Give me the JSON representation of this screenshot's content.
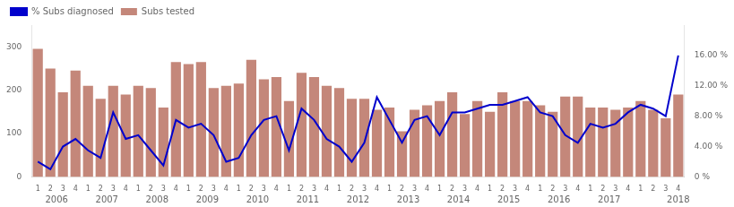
{
  "chart_data": {
    "type": "bar",
    "categories": [
      "1",
      "2",
      "3",
      "4",
      "1",
      "2",
      "3",
      "4",
      "1",
      "2",
      "3",
      "4",
      "1",
      "2",
      "3",
      "4",
      "1",
      "2",
      "3",
      "4",
      "1",
      "2",
      "3",
      "4",
      "1",
      "2",
      "3",
      "4",
      "1",
      "2",
      "3",
      "4",
      "1",
      "2",
      "3",
      "4",
      "1",
      "2",
      "3",
      "4",
      "1",
      "2",
      "3",
      "4",
      "1",
      "2",
      "3",
      "4",
      "1",
      "2",
      "3",
      "4"
    ],
    "series": [
      {
        "name": "Subs tested",
        "type": "bar",
        "color": "#C4877A",
        "values": [
          295,
          250,
          195,
          245,
          210,
          180,
          210,
          190,
          210,
          205,
          160,
          265,
          260,
          265,
          205,
          210,
          215,
          270,
          225,
          230,
          175,
          240,
          230,
          210,
          205,
          180,
          180,
          155,
          160,
          105,
          155,
          165,
          175,
          195,
          145,
          175,
          150,
          195,
          175,
          175,
          165,
          150,
          185,
          185,
          160,
          160,
          155,
          160,
          175,
          155,
          135,
          190
        ]
      },
      {
        "name": "% Subs diagnosed",
        "type": "line",
        "color": "#0000CC",
        "axis": "y2",
        "marker": "none",
        "values": [
          2.0,
          1.0,
          4.0,
          5.0,
          3.5,
          2.5,
          8.5,
          5.0,
          5.5,
          3.5,
          1.5,
          7.5,
          6.5,
          7.0,
          5.5,
          2.0,
          2.5,
          5.5,
          7.5,
          8.0,
          3.5,
          9.0,
          7.5,
          5.0,
          4.0,
          2.0,
          4.5,
          10.5,
          7.5,
          4.5,
          7.5,
          8.0,
          5.5,
          8.5,
          8.5,
          9.0,
          9.5,
          9.5,
          10.0,
          10.5,
          8.5,
          8.0,
          5.5,
          4.5,
          7.0,
          6.5,
          7.0,
          8.5,
          9.5,
          9.0,
          8.0,
          16.0
        ]
      }
    ],
    "ylim": [
      0,
      350
    ],
    "yticks": [
      0,
      100,
      200,
      300
    ],
    "y2lim": [
      0,
      20
    ],
    "y2ticks": [
      {
        "value": 0,
        "label": "0 %"
      },
      {
        "value": 4,
        "label": "4.00 %"
      },
      {
        "value": 8,
        "label": "8.00 %"
      },
      {
        "value": 12,
        "label": "12.00 %"
      },
      {
        "value": 16,
        "label": "16.00 %"
      }
    ],
    "annotations": [
      {
        "text": "2006",
        "x": 1.5
      },
      {
        "text": "2007",
        "x": 5.5
      },
      {
        "text": "2008",
        "x": 9.5
      },
      {
        "text": "2009",
        "x": 13.5
      },
      {
        "text": "2010",
        "x": 17.5
      },
      {
        "text": "2011",
        "x": 21.5
      },
      {
        "text": "2012",
        "x": 25.5
      },
      {
        "text": "2013",
        "x": 29.5
      },
      {
        "text": "2014",
        "x": 33.5
      },
      {
        "text": "2015",
        "x": 37.5
      },
      {
        "text": "2016",
        "x": 41.5
      },
      {
        "text": "2017",
        "x": 45.5
      },
      {
        "text": "2018",
        "x": 51
      }
    ],
    "legend": "upper left",
    "grid": false
  }
}
